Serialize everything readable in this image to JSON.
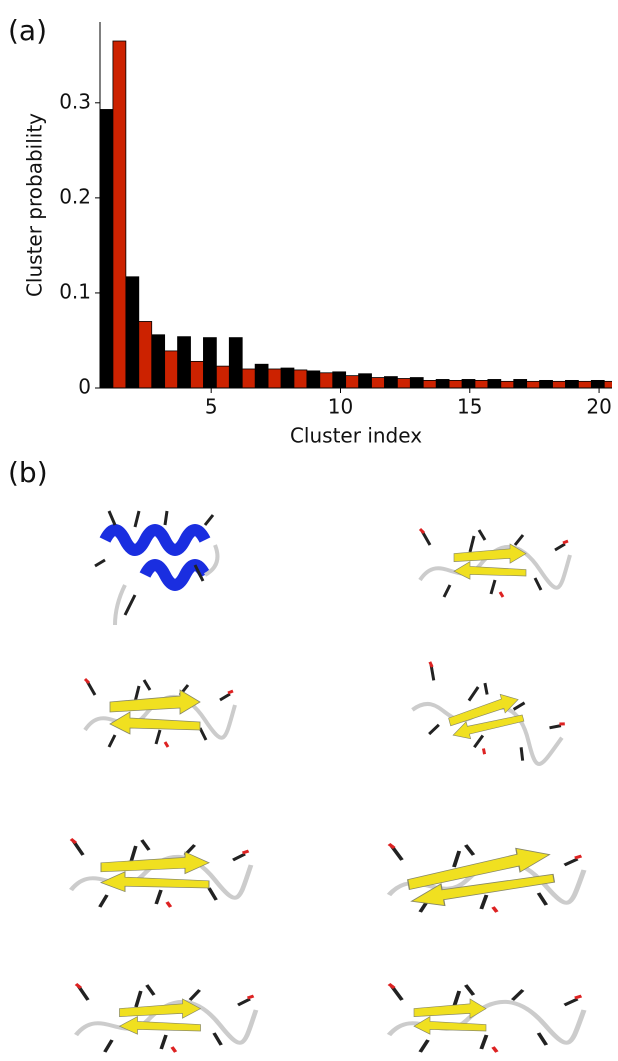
{
  "panel_labels": [
    "(a)",
    "(b)"
  ],
  "chart_data": {
    "type": "bar",
    "xlabel": "Cluster index",
    "ylabel": "Cluster probability",
    "categories": [
      1,
      2,
      3,
      4,
      5,
      6,
      7,
      8,
      9,
      10,
      11,
      12,
      13,
      14,
      15,
      16,
      17,
      18,
      19,
      20
    ],
    "series": [
      {
        "color": "#000000",
        "values": [
          0.293,
          0.117,
          0.056,
          0.054,
          0.053,
          0.053,
          0.025,
          0.021,
          0.018,
          0.017,
          0.015,
          0.012,
          0.011,
          0.009,
          0.009,
          0.009,
          0.009,
          0.008,
          0.008,
          0.008
        ]
      },
      {
        "color": "#cc2200",
        "values": [
          0.365,
          0.07,
          0.039,
          0.028,
          0.023,
          0.02,
          0.02,
          0.019,
          0.016,
          0.013,
          0.011,
          0.01,
          0.008,
          0.008,
          0.008,
          0.007,
          0.007,
          0.007,
          0.007,
          0.007
        ]
      }
    ],
    "xlim": [
      0.7,
      20.5
    ],
    "xticks": [
      5,
      10,
      15,
      20
    ],
    "ylim": [
      0,
      0.385
    ],
    "yticks": [
      0,
      0.1,
      0.2,
      0.3
    ]
  }
}
